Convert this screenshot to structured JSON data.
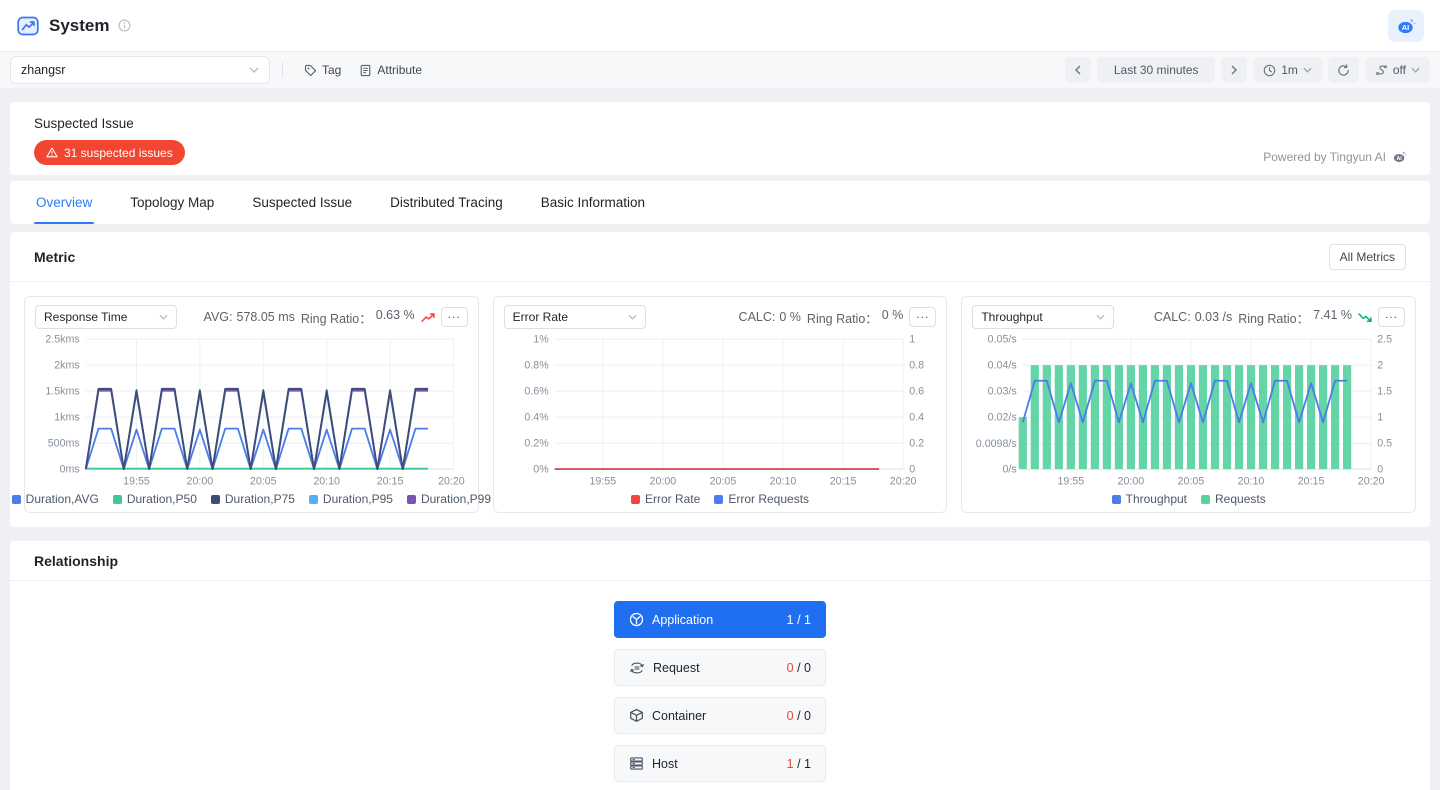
{
  "header": {
    "title": "System"
  },
  "toolbar": {
    "scope_value": "zhangsr",
    "tag_label": "Tag",
    "attribute_label": "Attribute",
    "time_range": "Last 30 minutes",
    "interval": "1m",
    "compare": "off"
  },
  "suspected": {
    "title": "Suspected Issue",
    "badge": "31 suspected issues",
    "powered_by": "Powered by Tingyun AI"
  },
  "tabs": [
    {
      "label": "Overview",
      "active": true
    },
    {
      "label": "Topology Map",
      "active": false
    },
    {
      "label": "Suspected Issue",
      "active": false
    },
    {
      "label": "Distributed Tracing",
      "active": false
    },
    {
      "label": "Basic Information",
      "active": false
    }
  ],
  "metric": {
    "title": "Metric",
    "all_metrics_label": "All Metrics"
  },
  "relationship": {
    "title": "Relationship",
    "nodes": [
      {
        "label": "Application",
        "icon": "application-icon",
        "count": "1",
        "total": "1",
        "active": true
      },
      {
        "label": "Request",
        "icon": "request-icon",
        "count": "0",
        "total": "0",
        "active": false
      },
      {
        "label": "Container",
        "icon": "container-icon",
        "count": "0",
        "total": "0",
        "active": false
      },
      {
        "label": "Host",
        "icon": "host-icon",
        "count": "1",
        "total": "1",
        "active": false
      }
    ]
  },
  "chart_data": [
    {
      "type": "line",
      "select_label": "Response Time",
      "stats": [
        {
          "label": "AVG:",
          "value": "578.05 ms"
        },
        {
          "label": "Ring Ratio：",
          "value": "0.63 %"
        }
      ],
      "trend": "up",
      "x_min": 0,
      "x_max": 29,
      "x_ticks": [
        {
          "v": 4,
          "label": "19:55"
        },
        {
          "v": 9,
          "label": "20:00"
        },
        {
          "v": 14,
          "label": "20:05"
        },
        {
          "v": 19,
          "label": "20:10"
        },
        {
          "v": 24,
          "label": "20:15"
        },
        {
          "v": 29,
          "label": "20:20"
        }
      ],
      "y_left": {
        "min": 0,
        "max": 2500,
        "ticks": [
          {
            "v": 0,
            "label": "0ms"
          },
          {
            "v": 500,
            "label": "500ms"
          },
          {
            "v": 1000,
            "label": "1kms"
          },
          {
            "v": 1500,
            "label": "1.5kms"
          },
          {
            "v": 2000,
            "label": "2kms"
          },
          {
            "v": 2500,
            "label": "2.5kms"
          }
        ]
      },
      "y_right": null,
      "series": [
        {
          "name": "Duration,P50",
          "type": "line",
          "axis": "left",
          "color": "#3fc796",
          "values": [
            8,
            8,
            8,
            8,
            8,
            8,
            8,
            8,
            8,
            8,
            8,
            8,
            8,
            8,
            8,
            8,
            8,
            8,
            8,
            8,
            8,
            8,
            8,
            8,
            8,
            8,
            8,
            8
          ]
        },
        {
          "name": "Duration,AVG",
          "type": "line",
          "axis": "left",
          "color": "#4d7cec",
          "values": [
            0,
            780,
            780,
            0,
            760,
            0,
            780,
            780,
            0,
            760,
            0,
            780,
            780,
            0,
            760,
            0,
            780,
            780,
            0,
            760,
            0,
            780,
            780,
            0,
            760,
            0,
            780,
            780
          ]
        },
        {
          "name": "Duration,P95",
          "type": "line",
          "axis": "left",
          "color": "#58aef0",
          "values": [
            0,
            1500,
            1500,
            0,
            1472,
            0,
            1500,
            1500,
            0,
            1472,
            0,
            1500,
            1500,
            0,
            1472,
            0,
            1500,
            1500,
            0,
            1472,
            0,
            1500,
            1500,
            0,
            1472,
            0,
            1500,
            1500
          ]
        },
        {
          "name": "Duration,P99",
          "type": "line",
          "axis": "left",
          "color": "#7a52b8",
          "values": [
            0,
            1520,
            1520,
            0,
            1495,
            0,
            1520,
            1520,
            0,
            1495,
            0,
            1520,
            1520,
            0,
            1495,
            0,
            1520,
            1520,
            0,
            1495,
            0,
            1520,
            1520,
            0,
            1495,
            0,
            1520,
            1520
          ]
        },
        {
          "name": "Duration,P75",
          "type": "line",
          "axis": "left",
          "color": "#3d4d73",
          "values": [
            0,
            1545,
            1545,
            0,
            1518,
            0,
            1545,
            1545,
            0,
            1518,
            0,
            1545,
            1545,
            0,
            1518,
            0,
            1545,
            1545,
            0,
            1518,
            0,
            1545,
            1545,
            0,
            1518,
            0,
            1545,
            1545
          ]
        }
      ],
      "legend": [
        {
          "label": "Duration,AVG",
          "color": "#4d7cec"
        },
        {
          "label": "Duration,P50",
          "color": "#3fc796"
        },
        {
          "label": "Duration,P75",
          "color": "#3d4d73"
        },
        {
          "label": "Duration,P95",
          "color": "#58aef0"
        },
        {
          "label": "Duration,P99",
          "color": "#7a52b8"
        }
      ]
    },
    {
      "type": "line",
      "select_label": "Error Rate",
      "stats": [
        {
          "label": "CALC:",
          "value": "0 %"
        },
        {
          "label": "Ring Ratio：",
          "value": "0 %"
        }
      ],
      "trend": null,
      "x_min": 0,
      "x_max": 29,
      "x_ticks": [
        {
          "v": 4,
          "label": "19:55"
        },
        {
          "v": 9,
          "label": "20:00"
        },
        {
          "v": 14,
          "label": "20:05"
        },
        {
          "v": 19,
          "label": "20:10"
        },
        {
          "v": 24,
          "label": "20:15"
        },
        {
          "v": 29,
          "label": "20:20"
        }
      ],
      "y_left": {
        "min": 0,
        "max": 1,
        "ticks": [
          {
            "v": 0,
            "label": "0%"
          },
          {
            "v": 0.2,
            "label": "0.2%"
          },
          {
            "v": 0.4,
            "label": "0.4%"
          },
          {
            "v": 0.6,
            "label": "0.6%"
          },
          {
            "v": 0.8,
            "label": "0.8%"
          },
          {
            "v": 1,
            "label": "1%"
          }
        ]
      },
      "y_right": {
        "min": 0,
        "max": 1,
        "ticks": [
          {
            "v": 0,
            "label": "0"
          },
          {
            "v": 0.2,
            "label": "0.2"
          },
          {
            "v": 0.4,
            "label": "0.4"
          },
          {
            "v": 0.6,
            "label": "0.6"
          },
          {
            "v": 0.8,
            "label": "0.8"
          },
          {
            "v": 1,
            "label": "1"
          }
        ]
      },
      "series": [
        {
          "name": "Error Requests",
          "type": "line",
          "axis": "right",
          "color": "#4d7cec",
          "values": [
            0,
            0,
            0,
            0,
            0,
            0,
            0,
            0,
            0,
            0,
            0,
            0,
            0,
            0,
            0,
            0,
            0,
            0,
            0,
            0,
            0,
            0,
            0,
            0,
            0,
            0,
            0,
            0
          ]
        },
        {
          "name": "Error Rate",
          "type": "line",
          "axis": "left",
          "color": "#f0483e",
          "values": [
            0,
            0,
            0,
            0,
            0,
            0,
            0,
            0,
            0,
            0,
            0,
            0,
            0,
            0,
            0,
            0,
            0,
            0,
            0,
            0,
            0,
            0,
            0,
            0,
            0,
            0,
            0,
            0
          ]
        }
      ],
      "legend": [
        {
          "label": "Error Rate",
          "color": "#f0483e"
        },
        {
          "label": "Error Requests",
          "color": "#4d7cec"
        }
      ]
    },
    {
      "type": "bar+line",
      "select_label": "Throughput",
      "stats": [
        {
          "label": "CALC:",
          "value": "0.03 /s"
        },
        {
          "label": "Ring Ratio：",
          "value": "7.41 %"
        }
      ],
      "trend": "down",
      "x_min": 0,
      "x_max": 29,
      "x_ticks": [
        {
          "v": 4,
          "label": "19:55"
        },
        {
          "v": 9,
          "label": "20:00"
        },
        {
          "v": 14,
          "label": "20:05"
        },
        {
          "v": 19,
          "label": "20:10"
        },
        {
          "v": 24,
          "label": "20:15"
        },
        {
          "v": 29,
          "label": "20:20"
        }
      ],
      "y_left": {
        "min": 0,
        "max": 0.05,
        "ticks": [
          {
            "v": 0,
            "label": "0/s"
          },
          {
            "v": 0.0098,
            "label": "0.0098/s"
          },
          {
            "v": 0.02,
            "label": "0.02/s"
          },
          {
            "v": 0.03,
            "label": "0.03/s"
          },
          {
            "v": 0.04,
            "label": "0.04/s"
          },
          {
            "v": 0.05,
            "label": "0.05/s"
          }
        ]
      },
      "y_right": {
        "min": 0,
        "max": 2.5,
        "ticks": [
          {
            "v": 0,
            "label": "0"
          },
          {
            "v": 0.5,
            "label": "0.5"
          },
          {
            "v": 1,
            "label": "1"
          },
          {
            "v": 1.5,
            "label": "1.5"
          },
          {
            "v": 2,
            "label": "2"
          },
          {
            "v": 2.5,
            "label": "2.5"
          }
        ]
      },
      "series": [
        {
          "name": "Requests",
          "type": "bar",
          "axis": "right",
          "color": "#5bd3a1",
          "values": [
            1,
            2,
            2,
            2,
            2,
            2,
            2,
            2,
            2,
            2,
            2,
            2,
            2,
            2,
            2,
            2,
            2,
            2,
            2,
            2,
            2,
            2,
            2,
            2,
            2,
            2,
            2,
            2
          ]
        },
        {
          "name": "Throughput",
          "type": "line",
          "axis": "left",
          "color": "#4d7cec",
          "values": [
            0.018,
            0.034,
            0.034,
            0.018,
            0.033,
            0.018,
            0.034,
            0.034,
            0.018,
            0.033,
            0.018,
            0.034,
            0.034,
            0.018,
            0.033,
            0.018,
            0.034,
            0.034,
            0.018,
            0.033,
            0.018,
            0.034,
            0.034,
            0.018,
            0.033,
            0.018,
            0.034,
            0.034
          ]
        }
      ],
      "legend": [
        {
          "label": "Throughput",
          "color": "#4d7cec"
        },
        {
          "label": "Requests",
          "color": "#5bd3a1"
        }
      ]
    }
  ]
}
